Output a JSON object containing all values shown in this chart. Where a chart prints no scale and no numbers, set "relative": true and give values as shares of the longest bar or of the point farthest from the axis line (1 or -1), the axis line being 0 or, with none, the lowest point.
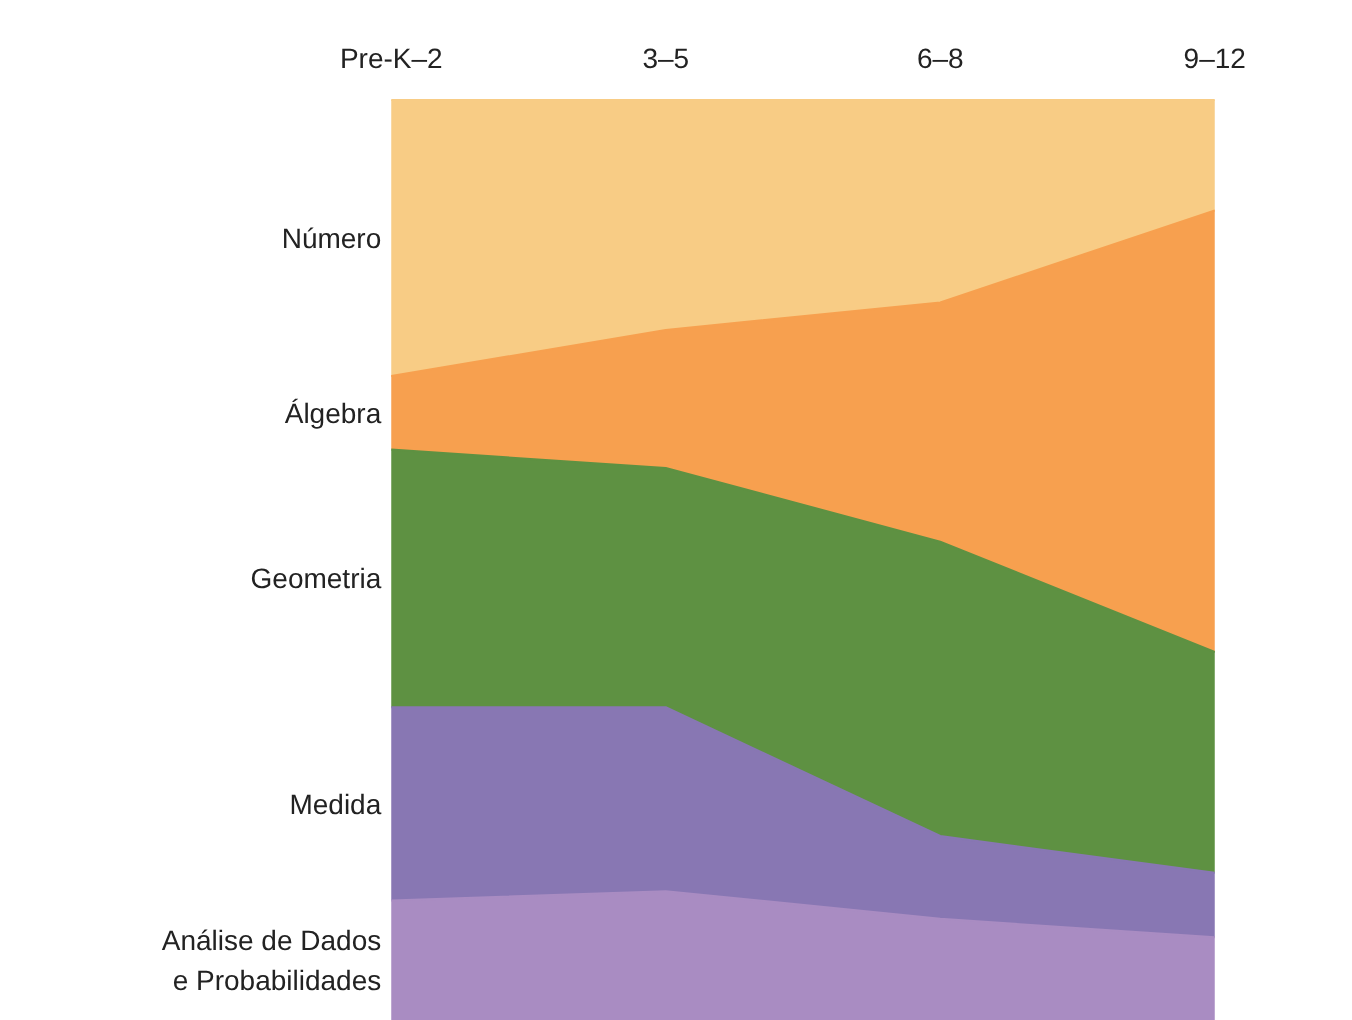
{
  "chart_data": {
    "type": "area",
    "stacked": true,
    "relative": true,
    "categories": [
      "Pre-K–2",
      "3–5",
      "6–8",
      "9–12"
    ],
    "series": [
      {
        "name": "Análise de Dados e Probabilidades",
        "color": "#a98cc2",
        "values": [
          0.13,
          0.14,
          0.11,
          0.09
        ]
      },
      {
        "name": "Medida",
        "color": "#8877b3",
        "values": [
          0.21,
          0.2,
          0.09,
          0.07
        ]
      },
      {
        "name": "Geometria",
        "color": "#5e9142",
        "values": [
          0.28,
          0.26,
          0.32,
          0.24
        ]
      },
      {
        "name": "Álgebra",
        "color": "#f7a04f",
        "values": [
          0.08,
          0.15,
          0.26,
          0.48
        ]
      },
      {
        "name": "Número",
        "color": "#f8cc85",
        "values": [
          0.3,
          0.25,
          0.22,
          0.12
        ]
      }
    ]
  }
}
